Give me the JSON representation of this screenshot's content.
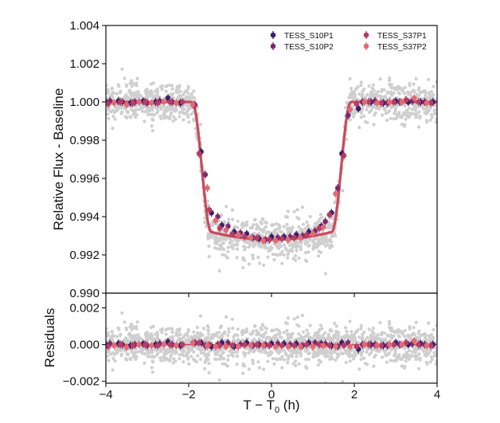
{
  "chart_data": {
    "type": "scatter",
    "panels": [
      {
        "name": "transit",
        "ylabel": "Relative Flux - Baseline",
        "xlim": [
          -4,
          4
        ],
        "ylim": [
          0.99,
          1.004
        ],
        "yticks": [
          "0.990",
          "0.992",
          "0.994",
          "0.996",
          "0.998",
          "1.000",
          "1.002",
          "1.004"
        ],
        "grid": false
      },
      {
        "name": "residuals",
        "ylabel": "Residuals",
        "xlabel_base": "T − T",
        "xlabel_sub": "0",
        "xlabel_unit": " (h)",
        "xlim": [
          -4,
          4
        ],
        "ylim": [
          -0.0021,
          0.0028
        ],
        "yticks": [
          "−0.002",
          "0.000",
          "0.002"
        ],
        "xticks": [
          "−4",
          "−2",
          "0",
          "2",
          "4"
        ],
        "grid": false
      }
    ],
    "legend": {
      "placement": "top-right",
      "columns": 2
    },
    "series": [
      {
        "name": "TESS_S10P1",
        "color": "#3b1f6b",
        "x": [
          -4.0,
          -3.7,
          -3.4,
          -3.1,
          -2.8,
          -2.5,
          -2.2,
          -1.7,
          -1.45,
          -1.2,
          -0.9,
          -0.6,
          -0.3,
          0.0,
          0.3,
          0.6,
          0.9,
          1.2,
          1.45,
          1.7,
          2.1,
          2.4,
          2.7,
          3.0,
          3.3,
          3.6,
          3.9
        ],
        "y": [
          1.0,
          1.00005,
          0.99995,
          1.00005,
          1.0,
          1.0002,
          0.99995,
          0.9974,
          0.9942,
          0.99355,
          0.9932,
          0.9931,
          0.99285,
          0.99295,
          0.99295,
          0.99305,
          0.9932,
          0.9935,
          0.9942,
          0.9973,
          0.99965,
          1.0,
          0.99995,
          1.00005,
          1.0,
          1.0,
          1.0
        ],
        "residuals": [
          0.0,
          5e-05,
          -5e-05,
          5e-05,
          0.0,
          0.00015,
          -5e-05,
          0.0001,
          -0.0001,
          0.0001,
          -0.0001,
          0.0001,
          0.0,
          5e-05,
          5e-05,
          5e-05,
          0.0001,
          5e-05,
          -5e-05,
          0.0001,
          -0.00025,
          0.0,
          -5e-05,
          0.0001,
          0.0,
          5e-05,
          0.0
        ]
      },
      {
        "name": "TESS_S10P2",
        "color": "#7b2a6e",
        "x": [
          -3.9,
          -3.6,
          -3.3,
          -3.0,
          -2.7,
          -2.4,
          -1.85,
          -1.6,
          -1.3,
          -1.05,
          -0.75,
          -0.45,
          -0.15,
          0.15,
          0.45,
          0.75,
          1.05,
          1.3,
          1.6,
          1.85,
          2.2,
          2.5,
          2.8,
          3.1,
          3.4,
          3.7
        ],
        "y": [
          1.00005,
          1.0,
          1.0,
          0.99995,
          1.00005,
          1.0,
          0.99985,
          0.9962,
          0.994,
          0.9935,
          0.99315,
          0.9929,
          0.9928,
          0.9929,
          0.99295,
          0.993,
          0.99325,
          0.99375,
          0.9955,
          0.9993,
          1.0,
          1.00005,
          0.99995,
          1.0,
          1.00005,
          1.0
        ],
        "residuals": [
          5e-05,
          0.0,
          0.0,
          -5e-05,
          5e-05,
          0.0,
          0.0001,
          -5e-05,
          0.0,
          0.0001,
          0.0,
          -5e-05,
          0.0,
          5e-05,
          0.0,
          -5e-05,
          0.0001,
          5e-05,
          -0.0001,
          0.0001,
          0.0,
          0.0,
          -5e-05,
          0.0,
          5e-05,
          0.0
        ]
      },
      {
        "name": "TESS_S37P1",
        "color": "#b73d62",
        "x": [
          -3.95,
          -3.65,
          -3.35,
          -3.05,
          -2.75,
          -2.45,
          -2.15,
          -1.75,
          -1.5,
          -1.25,
          -0.95,
          -0.65,
          -0.35,
          -0.05,
          0.25,
          0.55,
          0.85,
          1.15,
          1.4,
          1.75,
          2.05,
          2.35,
          2.65,
          2.95,
          3.25,
          3.55,
          3.85
        ],
        "y": [
          0.9999,
          1.0,
          0.99995,
          1.0,
          0.99995,
          1.0,
          1.0,
          0.9973,
          0.99435,
          0.9934,
          0.9931,
          0.99295,
          0.9929,
          0.9928,
          0.99285,
          0.9929,
          0.99305,
          0.9934,
          0.9941,
          0.9972,
          0.9999,
          1.0,
          0.99995,
          1.0,
          1.0001,
          1.0,
          0.99995
        ],
        "residuals": [
          -0.0001,
          0.0,
          -5e-05,
          0.0,
          -5e-05,
          0.0,
          0.0,
          0.0001,
          0.0,
          -5e-05,
          -5e-05,
          0.0,
          0.0,
          -5e-05,
          -5e-05,
          -5e-05,
          0.0,
          0.0,
          -5e-05,
          -5e-05,
          -0.0001,
          0.0,
          -5e-05,
          0.0,
          0.0001,
          0.0,
          -5e-05
        ]
      },
      {
        "name": "TESS_S37P2",
        "color": "#e36972",
        "x": [
          -3.8,
          -3.5,
          -3.2,
          -2.9,
          -2.6,
          -2.3,
          -1.9,
          -1.55,
          -1.35,
          -1.1,
          -0.8,
          -0.5,
          -0.2,
          0.1,
          0.4,
          0.7,
          1.0,
          1.25,
          1.55,
          1.9,
          2.25,
          2.55,
          2.85,
          3.15,
          3.45,
          3.75
        ],
        "y": [
          0.99995,
          0.99985,
          1.0,
          0.99995,
          1.0,
          0.99995,
          0.99985,
          0.9955,
          0.9938,
          0.9933,
          0.99305,
          0.9929,
          0.99275,
          0.99275,
          0.9928,
          0.9929,
          0.9931,
          0.99345,
          0.9952,
          0.9996,
          1.0,
          0.99995,
          1.0,
          1.0,
          1.0002,
          0.99995
        ],
        "residuals": [
          -5e-05,
          -0.00015,
          0.0,
          -5e-05,
          0.0,
          -5e-05,
          0.0001,
          -5e-05,
          -0.0001,
          -0.0001,
          -0.0001,
          -5e-05,
          -5e-05,
          -0.0001,
          -0.0001,
          -0.0001,
          -0.0001,
          -5e-05,
          -0.0001,
          -0.0001,
          0.0,
          -5e-05,
          0.0,
          0.0,
          0.0002,
          -5e-05
        ]
      }
    ],
    "model": {
      "color": "#c94a5e",
      "t_ingress_start": -1.92,
      "t_ingress_end": -1.45,
      "t_egress_start": 1.45,
      "t_egress_end": 1.92,
      "depth": 0.0072,
      "baseline": 1.0
    },
    "raw_points": {
      "color": "#cfcfcf",
      "count": 1500,
      "scatter_sigma": 0.0005
    }
  }
}
